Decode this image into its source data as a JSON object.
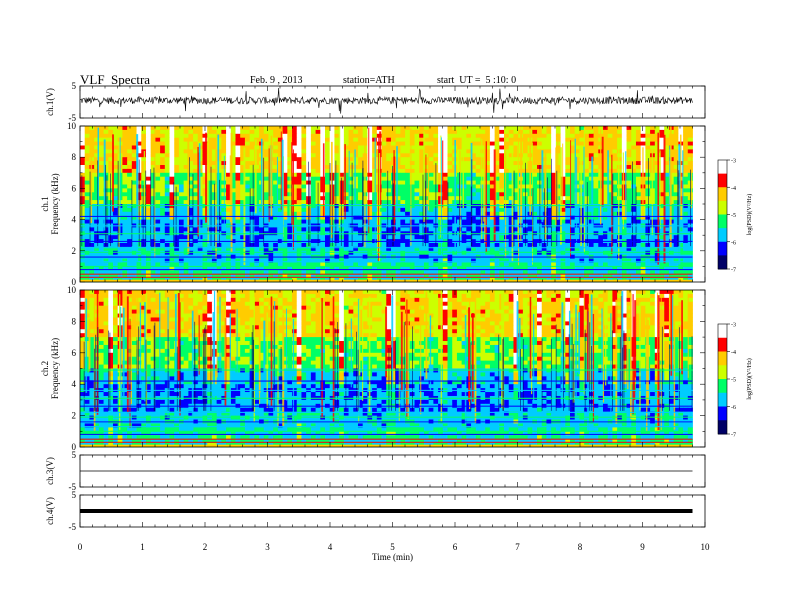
{
  "header": {
    "title": "VLF  Spectra",
    "date": "Feb. 9 , 2013",
    "station": "station=ATH",
    "start": "start  UT =  5 :10: 0"
  },
  "chart_data": [
    {
      "type": "line",
      "name": "ch1-waveform",
      "ylabel": "ch.1(V)",
      "ylim": [
        -5,
        5
      ],
      "yticks": [
        "5",
        "-5"
      ],
      "xlim": [
        0,
        10
      ],
      "baseline": 0.5,
      "noise": "high"
    },
    {
      "type": "heatmap",
      "name": "ch1-spectrogram",
      "ylabel_channel": "ch.1",
      "ylabel": "Frequency (kHz)",
      "ylim": [
        0,
        10
      ],
      "yticks": [
        "0",
        "2",
        "4",
        "6",
        "8",
        "10"
      ],
      "xlim": [
        0,
        10
      ],
      "data_end_min": 9.8,
      "colorbar": {
        "label": "log(PSD)(V²/Hz)",
        "range": [
          -7,
          -3
        ],
        "ticks": [
          "-3",
          "-4",
          "-5",
          "-6",
          "-7"
        ],
        "colors": [
          "#000066",
          "#0000ff",
          "#00ccff",
          "#00ff66",
          "#ccff00",
          "#ffcc00",
          "#ff0000",
          "#ffffff"
        ]
      }
    },
    {
      "type": "heatmap",
      "name": "ch2-spectrogram",
      "ylabel_channel": "ch.2",
      "ylabel": "Frequency (kHz)",
      "ylim": [
        0,
        10
      ],
      "yticks": [
        "0",
        "2",
        "4",
        "6",
        "8",
        "10"
      ],
      "xlim": [
        0,
        10
      ],
      "data_end_min": 9.8,
      "colorbar": {
        "label": "log(PSD)(V²/Hz)",
        "range": [
          -7,
          -3
        ],
        "ticks": [
          "-3",
          "-4",
          "-5",
          "-6",
          "-7"
        ],
        "colors": [
          "#000066",
          "#0000ff",
          "#00ccff",
          "#00ff66",
          "#ccff00",
          "#ffcc00",
          "#ff0000",
          "#ffffff"
        ]
      }
    },
    {
      "type": "line",
      "name": "ch3-waveform",
      "ylabel": "ch.3(V)",
      "ylim": [
        -5,
        5
      ],
      "yticks": [
        "5",
        "-5"
      ],
      "xlim": [
        0,
        10
      ],
      "baseline": 0.0,
      "noise": "none"
    },
    {
      "type": "line",
      "name": "ch4-waveform",
      "ylabel": "ch.4(V)",
      "ylim": [
        -5,
        5
      ],
      "yticks": [
        "5",
        "-5"
      ],
      "xlim": [
        0,
        10
      ],
      "baseline": 0.0,
      "noise": "thick",
      "xlabel": "Time  (min)",
      "xticks": [
        "0",
        "1",
        "2",
        "3",
        "4",
        "5",
        "6",
        "7",
        "8",
        "9",
        "10"
      ]
    }
  ]
}
